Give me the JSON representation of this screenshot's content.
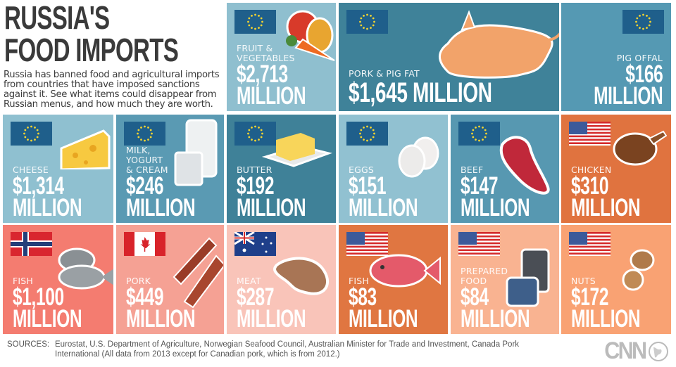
{
  "header": {
    "title": "RUSSIA'S\nFOOD IMPORTS",
    "intro": "Russia has banned food and agricultural imports from countries that have imposed sanctions against it. See what items could disappear from Russian menus, and how much they are worth."
  },
  "tiles": [
    {
      "label": "FRUIT &\nVEGETABLES",
      "value": "$2,713\nMILLION",
      "flag": "eu",
      "color": "#8fbfcf",
      "food": "fruit"
    },
    {
      "label": "PORK & PIG FAT",
      "value": "$1,645 MILLION",
      "flag": "eu",
      "color": "#3f8299",
      "food": "pig"
    },
    {
      "label": "PIG OFFAL",
      "value": "$166\nMILLION",
      "flag": "eu",
      "color": "#5599b3",
      "food": ""
    },
    {
      "label": "CHEESE",
      "value": "$1,314\nMILLION",
      "flag": "eu",
      "color": "#8fc0d0",
      "food": "cheese"
    },
    {
      "label": "MILK,\nYOGURT\n& CREAM",
      "value": "$246\nMILLION",
      "flag": "eu",
      "color": "#5a9ab3",
      "food": "milk"
    },
    {
      "label": "BUTTER",
      "value": "$192\nMILLION",
      "flag": "eu",
      "color": "#3f8198",
      "food": "butter"
    },
    {
      "label": "EGGS",
      "value": "$151\nMILLION",
      "flag": "eu",
      "color": "#91c1d1",
      "food": "eggs"
    },
    {
      "label": "BEEF",
      "value": "$147\nMILLION",
      "flag": "eu",
      "color": "#5798b1",
      "food": "beef"
    },
    {
      "label": "CHICKEN",
      "value": "$310\nMILLION",
      "flag": "us",
      "color": "#e0733f",
      "food": "chicken"
    },
    {
      "label": "FISH",
      "value": "$1,100\nMILLION",
      "flag": "norway",
      "color": "#f47c70",
      "food": "fish-grey"
    },
    {
      "label": "PORK",
      "value": "$449\nMILLION",
      "flag": "canada",
      "color": "#f5a194",
      "food": "bacon"
    },
    {
      "label": "MEAT",
      "value": "$287\nMILLION",
      "flag": "australia",
      "color": "#f9c4b9",
      "food": "meat"
    },
    {
      "label": "FISH",
      "value": "$83\nMILLION",
      "flag": "us",
      "color": "#e07641",
      "food": "fish-red"
    },
    {
      "label": "PREPARED\nFOOD",
      "value": "$84\nMILLION",
      "flag": "us",
      "color": "#f9b391",
      "food": "cans"
    },
    {
      "label": "NUTS",
      "value": "$172\nMILLION",
      "flag": "us",
      "color": "#f9a273",
      "food": "nuts"
    }
  ],
  "footer": {
    "sources_label": "SOURCES:",
    "sources_text": "Eurostat, U.S. Department of Agriculture, Norwegian Seafood Council, Australian Minister for Trade and Investment, Canada Pork International (All data from 2013 except for Canadian pork, which is from 2012.)",
    "logo": "CNN"
  }
}
